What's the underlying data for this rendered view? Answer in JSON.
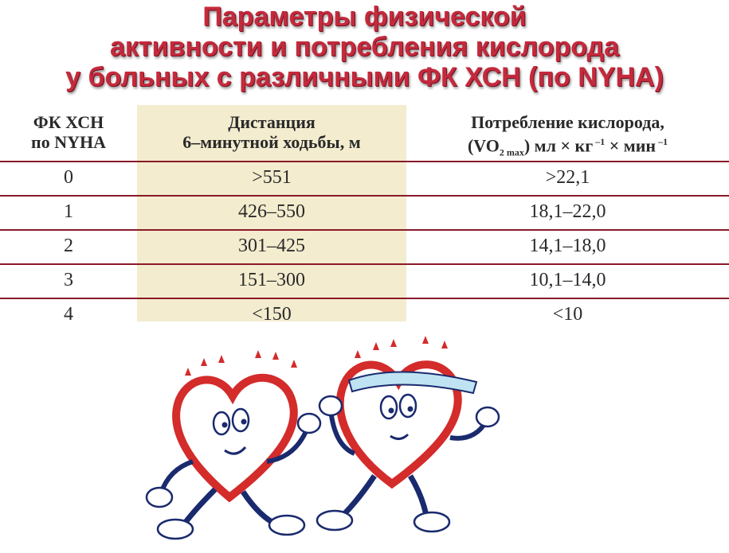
{
  "title": {
    "line1": "Параметры физической",
    "line2": "активности и потребления кислорода",
    "line3": "у больных с различными ФК ХСН (по NYHA)"
  },
  "table": {
    "headers": {
      "col1_line1": "ФК ХСН",
      "col1_line2": "по NYHA",
      "col2_line1": "Дистанция",
      "col2_line2": "6–минутной ходьбы, м",
      "col3_line1": "Потребление кислорода,",
      "col3_vo": "(VO",
      "col3_sub": "2 max",
      "col3_units_a": ") мл × кг",
      "col3_sup1": " –1",
      "col3_units_b": " × мин",
      "col3_sup2": " –1"
    },
    "rows": [
      {
        "fk": "0",
        "distance": ">551",
        "oxygen": ">22,1"
      },
      {
        "fk": "1",
        "distance": "426–550",
        "oxygen": "18,1–22,0"
      },
      {
        "fk": "2",
        "distance": "301–425",
        "oxygen": "14,1–18,0"
      },
      {
        "fk": "3",
        "distance": "151–300",
        "oxygen": "10,1–14,0"
      },
      {
        "fk": "4",
        "distance": "<150",
        "oxygen": "<10"
      }
    ]
  },
  "illustration": {
    "icon": "running-hearts-cartoon",
    "colors": {
      "heart_outline": "#d42b2b",
      "headband": "#bfe3f2",
      "ink": "#1a2a6e"
    }
  }
}
